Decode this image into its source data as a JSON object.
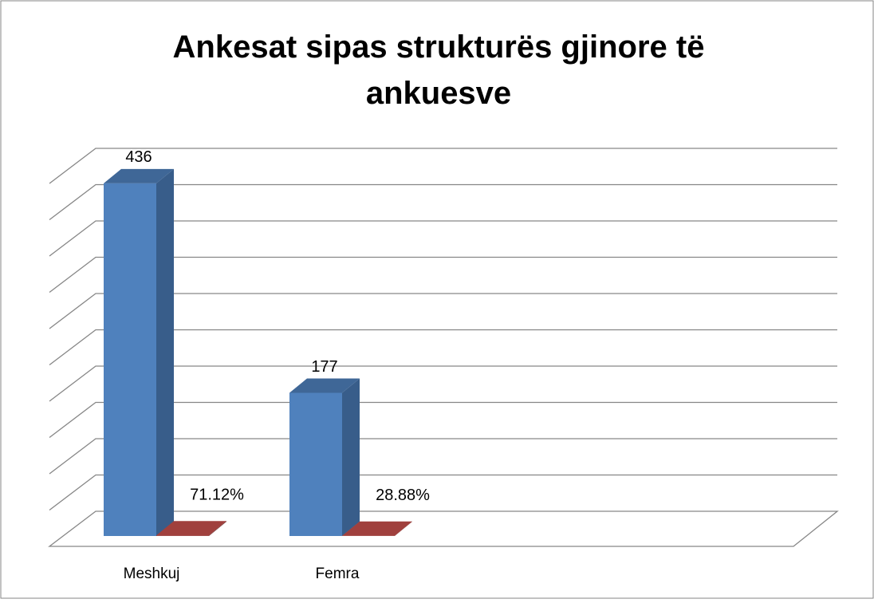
{
  "chart_data": {
    "type": "bar3d",
    "title": "Ankesat sipas strukturës gjinore të ankuesve",
    "categories": [
      "Meshkuj",
      "Femra"
    ],
    "series": [
      {
        "color": "#4f81bd",
        "values": [
          436,
          177
        ]
      },
      {
        "color": "#953735",
        "values": [
          0.7112,
          0.2888
        ],
        "value_labels": [
          "71.12%",
          "28.88%"
        ]
      }
    ],
    "ylim": [
      0,
      500
    ],
    "yticks": [
      0,
      50,
      100,
      150,
      200,
      250,
      300,
      350,
      400,
      450,
      500
    ],
    "grid": true
  }
}
